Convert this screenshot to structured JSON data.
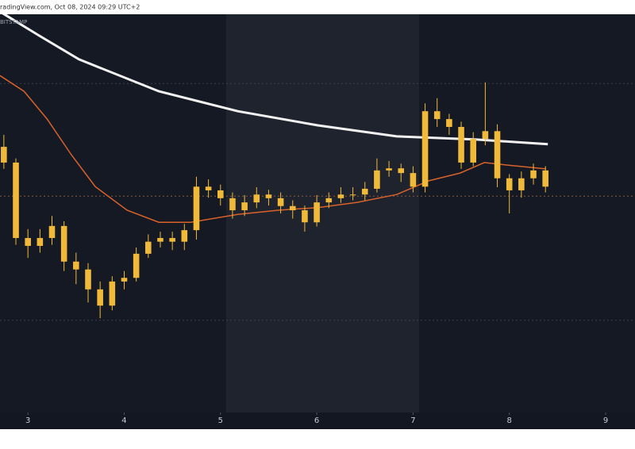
{
  "chart_data": {
    "type": "candlestick",
    "source": "radingView.com, Oct 08, 2024 09:29 UTC+2",
    "exchange": "BITSTAMP",
    "color": "#f0b93a",
    "x": [
      2.75,
      2.875,
      3.0,
      3.125,
      3.25,
      3.375,
      3.5,
      3.625,
      3.75,
      3.875,
      4.0,
      4.125,
      4.25,
      4.375,
      4.5,
      4.625,
      4.75,
      4.875,
      5.0,
      5.125,
      5.25,
      5.375,
      5.5,
      5.625,
      5.75,
      5.875,
      6.0,
      6.125,
      6.25,
      6.375,
      6.5,
      6.625,
      6.75,
      6.875,
      7.0,
      7.125,
      7.25,
      7.375,
      7.5,
      7.625,
      7.75,
      7.875,
      8.0,
      8.125,
      8.25,
      8.375
    ],
    "open": [
      63170,
      62870,
      61430,
      61280,
      61430,
      61660,
      60980,
      60830,
      60450,
      60140,
      60600,
      60670,
      61130,
      61360,
      61430,
      61360,
      61580,
      62410,
      62340,
      62190,
      61960,
      62110,
      62260,
      62190,
      62040,
      61960,
      61730,
      62110,
      62190,
      62260,
      62260,
      62370,
      62720,
      62760,
      62670,
      62410,
      63850,
      63700,
      63550,
      62870,
      63320,
      63470,
      62570,
      62340,
      62570,
      62720
    ],
    "high": [
      63400,
      62950,
      61600,
      61600,
      61850,
      61750,
      61150,
      60950,
      60600,
      60700,
      60800,
      61250,
      61500,
      61550,
      61550,
      61700,
      62600,
      62550,
      62450,
      62300,
      62250,
      62400,
      62350,
      62300,
      62150,
      62050,
      62250,
      62300,
      62400,
      62400,
      62500,
      62950,
      62900,
      62850,
      62800,
      64000,
      64100,
      63800,
      63650,
      63450,
      64400,
      63600,
      62650,
      62700,
      62850,
      62800
    ],
    "low": [
      62750,
      61300,
      61050,
      61150,
      61300,
      60800,
      60550,
      60200,
      59900,
      60050,
      60450,
      60600,
      61050,
      61250,
      61200,
      61200,
      61400,
      62200,
      62050,
      61800,
      61850,
      62000,
      62050,
      61900,
      61800,
      61550,
      61650,
      62000,
      62100,
      62150,
      62150,
      62300,
      62600,
      62500,
      62300,
      62300,
      63550,
      63400,
      62750,
      62800,
      63200,
      62400,
      61900,
      62200,
      62450,
      62300
    ],
    "close": [
      62870,
      61430,
      61280,
      61430,
      61660,
      60980,
      60830,
      60450,
      60140,
      60600,
      60670,
      61130,
      61360,
      61430,
      61360,
      61580,
      62410,
      62340,
      62190,
      61960,
      62110,
      62260,
      62190,
      62040,
      61960,
      61730,
      62110,
      62190,
      62260,
      62260,
      62370,
      62720,
      62760,
      62670,
      62410,
      63850,
      63700,
      63550,
      62870,
      63320,
      63470,
      62570,
      62340,
      62570,
      62720,
      62410
    ],
    "lines": [
      {
        "color": "#f2f2f2",
        "x": [
          2.71,
          3.12,
          3.53,
          4.36,
          5.18,
          6.01,
          6.83,
          7.66,
          8.4
        ],
        "values": [
          65750,
          65290,
          64840,
          64230,
          63850,
          63580,
          63370,
          63310,
          63220
        ]
      },
      {
        "color": "#d9622b",
        "x": [
          2.71,
          2.96,
          3.2,
          3.45,
          3.7,
          4.03,
          4.36,
          4.69,
          5.18,
          5.6,
          6.01,
          6.42,
          6.83,
          7.16,
          7.49,
          7.74,
          7.99,
          8.38
        ],
        "values": [
          64530,
          64230,
          63700,
          63020,
          62410,
          61960,
          61730,
          61730,
          61880,
          61960,
          62010,
          62110,
          62260,
          62520,
          62670,
          62870,
          62820,
          62750
        ]
      }
    ],
    "levels": [
      64380,
      62230,
      59860
    ],
    "xlim": [
      2.71,
      9.305
    ],
    "xticks": [
      3,
      4,
      5,
      6,
      7,
      8,
      9
    ],
    "ylim": [
      58100,
      65700
    ]
  }
}
